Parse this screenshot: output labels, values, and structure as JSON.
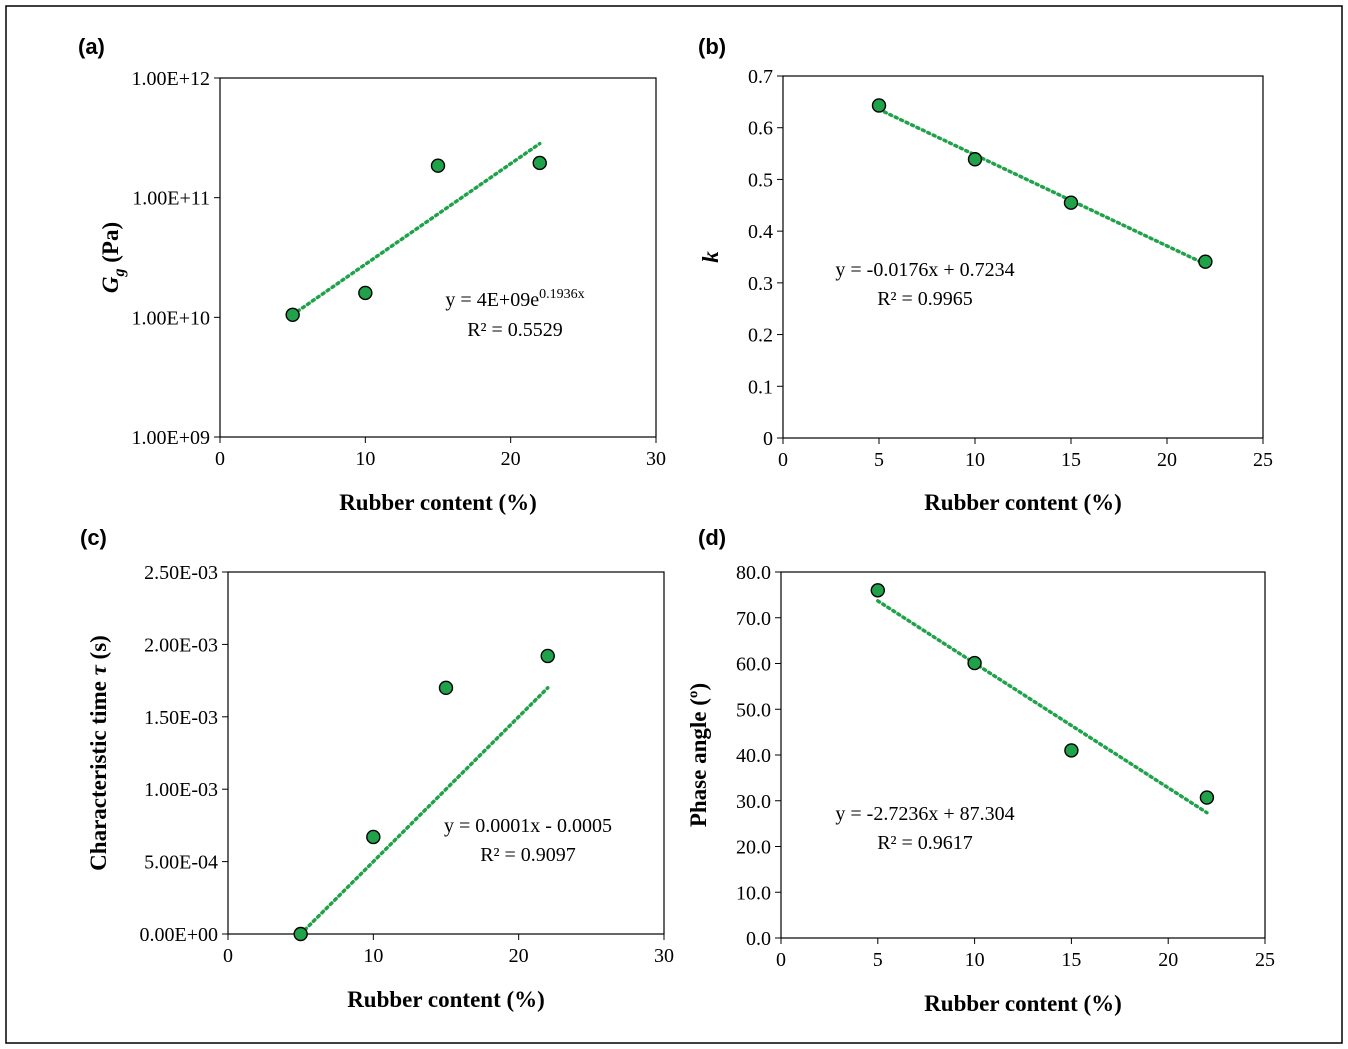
{
  "chart_data": [
    {
      "panel": "(a)",
      "type": "scatter",
      "xlabel": "Rubber content (%)",
      "ylabel_main": "G",
      "ylabel_sub": "g",
      "ylabel_rest": " (Pa)",
      "y_scale": "log",
      "xlim": [
        0,
        30
      ],
      "ylim": [
        1000000000.0,
        1000000000000.0
      ],
      "xticks": [
        "0",
        "10",
        "20",
        "30"
      ],
      "yticks": [
        "1.00E+09",
        "1.00E+10",
        "1.00E+11",
        "1.00E+12"
      ],
      "x": [
        5,
        10,
        15,
        22
      ],
      "y": [
        10500000000.0,
        16000000000.0,
        185000000000.0,
        195000000000.0
      ],
      "trendline": {
        "kind": "exponential",
        "a": 4000000000.0,
        "b": 0.1936,
        "x_range": [
          5,
          22
        ]
      },
      "equation": "y = 4E+09e",
      "equation_sup": "0.1936x",
      "r2": "R² = 0.5529",
      "marker_color": "#1fa24a",
      "trend_color": "#1fa24a",
      "grid": false
    },
    {
      "panel": "(b)",
      "type": "scatter",
      "xlabel": "Rubber content (%)",
      "ylabel_main": "k",
      "y_scale": "linear",
      "xlim": [
        0,
        25
      ],
      "ylim": [
        0,
        0.7
      ],
      "xticks": [
        "0",
        "5",
        "10",
        "15",
        "20",
        "25"
      ],
      "yticks": [
        "0",
        "0.1",
        "0.2",
        "0.3",
        "0.4",
        "0.5",
        "0.6",
        "0.7"
      ],
      "x": [
        5,
        10,
        15,
        22
      ],
      "y": [
        0.643,
        0.539,
        0.455,
        0.341
      ],
      "trendline": {
        "kind": "linear",
        "m": -0.0176,
        "c": 0.7234,
        "x_range": [
          5,
          22
        ]
      },
      "equation": "y = -0.0176x + 0.7234",
      "r2": "R² = 0.9965",
      "marker_color": "#1fa24a",
      "trend_color": "#1fa24a",
      "grid": false
    },
    {
      "panel": "(c)",
      "type": "scatter",
      "xlabel": "Rubber content (%)",
      "ylabel_main": "Characteristic time ",
      "ylabel_tau": "τ",
      "ylabel_rest": " (s)",
      "y_scale": "linear",
      "xlim": [
        0,
        30
      ],
      "ylim": [
        0,
        0.0025
      ],
      "xticks": [
        "0",
        "10",
        "20",
        "30"
      ],
      "yticks": [
        "0.00E+00",
        "5.00E-04",
        "1.00E-03",
        "1.50E-03",
        "2.00E-03",
        "2.50E-03"
      ],
      "x": [
        5,
        10,
        15,
        22
      ],
      "y": [
        0.0,
        0.00067,
        0.0017,
        0.00192
      ],
      "trendline": {
        "kind": "linear",
        "m": 0.0001,
        "c": -0.0005,
        "x_range": [
          5,
          22
        ]
      },
      "equation": "y = 0.0001x - 0.0005",
      "r2": "R² = 0.9097",
      "marker_color": "#1fa24a",
      "trend_color": "#1fa24a",
      "grid": false
    },
    {
      "panel": "(d)",
      "type": "scatter",
      "xlabel": "Rubber content (%)",
      "ylabel_main": "Phase angle (º)",
      "y_scale": "linear",
      "xlim": [
        0,
        25
      ],
      "ylim": [
        0,
        80
      ],
      "xticks": [
        "0",
        "5",
        "10",
        "15",
        "20",
        "25"
      ],
      "yticks": [
        "0.0",
        "10.0",
        "20.0",
        "30.0",
        "40.0",
        "50.0",
        "60.0",
        "70.0",
        "80.0"
      ],
      "x": [
        5,
        10,
        15,
        22
      ],
      "y": [
        76.0,
        60.1,
        41.0,
        30.7
      ],
      "trendline": {
        "kind": "linear",
        "m": -2.7236,
        "c": 87.304,
        "x_range": [
          5,
          22
        ]
      },
      "equation": "y = -2.7236x + 87.304",
      "r2": "R² = 0.9617",
      "marker_color": "#1fa24a",
      "trend_color": "#1fa24a",
      "grid": false
    }
  ]
}
